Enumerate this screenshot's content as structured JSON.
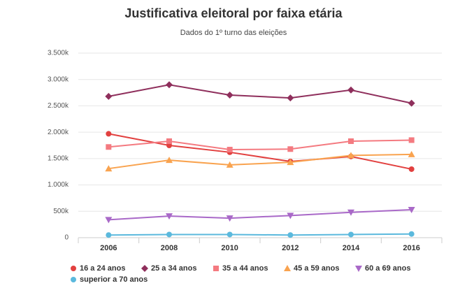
{
  "chart_data": {
    "type": "line",
    "title": "Justificativa eleitoral por faixa etária",
    "subtitle": "Dados do 1º turno das eleições",
    "categories": [
      "2006",
      "2008",
      "2010",
      "2012",
      "2014",
      "2016"
    ],
    "ylim": [
      0,
      3500000
    ],
    "yticks": [
      0,
      {
        "value": 500000,
        "label": "500k"
      },
      {
        "value": 1000000,
        "label": "1.000k"
      },
      {
        "value": 1500000,
        "label": "1.500k"
      },
      {
        "value": 2000000,
        "label": "2.000k"
      },
      {
        "value": 2500000,
        "label": "2.500k"
      },
      {
        "value": 3000000,
        "label": "3.000k"
      },
      {
        "value": 3500000,
        "label": "3.500k"
      }
    ],
    "grid": true,
    "series": [
      {
        "name": "16 a 24 anos",
        "color": "#e2403f",
        "marker": "circle",
        "values": [
          1970000,
          1750000,
          1620000,
          1445000,
          1540000,
          1300000
        ]
      },
      {
        "name": "25 a 34 anos",
        "color": "#8f2f5c",
        "marker": "diamond",
        "values": [
          2680000,
          2900000,
          2705000,
          2650000,
          2800000,
          2550000
        ]
      },
      {
        "name": "35 a 44 anos",
        "color": "#f47a80",
        "marker": "square",
        "values": [
          1720000,
          1830000,
          1670000,
          1680000,
          1830000,
          1850000
        ]
      },
      {
        "name": "45 a 59 anos",
        "color": "#f9a34f",
        "marker": "triangle",
        "values": [
          1310000,
          1470000,
          1380000,
          1430000,
          1560000,
          1580000
        ]
      },
      {
        "name": "60 a 69 anos",
        "color": "#a969c8",
        "marker": "triangle-down",
        "values": [
          340000,
          410000,
          370000,
          420000,
          480000,
          530000
        ]
      },
      {
        "name": "superior a 70 anos",
        "color": "#5bb9dd",
        "marker": "circle",
        "values": [
          50000,
          60000,
          60000,
          50000,
          60000,
          70000
        ]
      }
    ]
  }
}
